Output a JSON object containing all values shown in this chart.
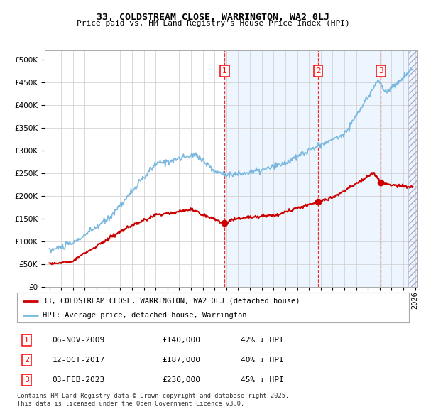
{
  "title": "33, COLDSTREAM CLOSE, WARRINGTON, WA2 0LJ",
  "subtitle": "Price paid vs. HM Land Registry's House Price Index (HPI)",
  "hpi_color": "#7ab8e0",
  "price_color": "#cc0000",
  "background_color": "#ffffff",
  "grid_color": "#cccccc",
  "shaded_color": "#ddeeff",
  "ylim": [
    0,
    520000
  ],
  "yticks": [
    0,
    50000,
    100000,
    150000,
    200000,
    250000,
    300000,
    350000,
    400000,
    450000,
    500000
  ],
  "xlim_start": 1994.6,
  "xlim_end": 2026.2,
  "xticks": [
    1995,
    1996,
    1997,
    1998,
    1999,
    2000,
    2001,
    2002,
    2003,
    2004,
    2005,
    2006,
    2007,
    2008,
    2009,
    2010,
    2011,
    2012,
    2013,
    2014,
    2015,
    2016,
    2017,
    2018,
    2019,
    2020,
    2021,
    2022,
    2023,
    2024,
    2025,
    2026
  ],
  "sale_year_1": 2009.85,
  "sale_year_2": 2017.78,
  "sale_year_3": 2023.09,
  "sale_price_1": 140000,
  "sale_price_2": 187000,
  "sale_price_3": 230000,
  "sale_labels": [
    {
      "num": "1",
      "date": "06-NOV-2009",
      "price": "£140,000",
      "pct": "42% ↓ HPI"
    },
    {
      "num": "2",
      "date": "12-OCT-2017",
      "price": "£187,000",
      "pct": "40% ↓ HPI"
    },
    {
      "num": "3",
      "date": "03-FEB-2023",
      "price": "£230,000",
      "pct": "45% ↓ HPI"
    }
  ],
  "legend_line1": "33, COLDSTREAM CLOSE, WARRINGTON, WA2 0LJ (detached house)",
  "legend_line2": "HPI: Average price, detached house, Warrington",
  "footnote": "Contains HM Land Registry data © Crown copyright and database right 2025.\nThis data is licensed under the Open Government Licence v3.0."
}
